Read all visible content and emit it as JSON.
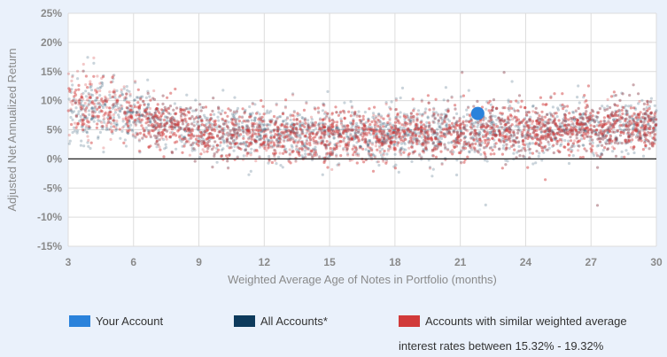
{
  "chart_data": {
    "type": "scatter",
    "xlabel": "Weighted Average Age of Notes in Portfolio (months)",
    "ylabel": "Adjusted Net Annualized Return",
    "xlim": [
      3,
      30
    ],
    "ylim": [
      -15,
      25
    ],
    "x_ticks": [
      "3",
      "6",
      "9",
      "12",
      "15",
      "18",
      "21",
      "24",
      "27",
      "30"
    ],
    "y_ticks": [
      "25%",
      "20%",
      "15%",
      "10%",
      "5%",
      "0%",
      "-5%",
      "-10%",
      "-15%"
    ],
    "grid": true,
    "legend_placement": "bottom",
    "series": [
      {
        "name": "Your Account",
        "color": "#2a82db",
        "points": [
          {
            "x": 21.8,
            "y": 7.8
          }
        ]
      },
      {
        "name": "All Accounts*",
        "color": "#0d3a5c",
        "note": "dense cloud of points; approximate trend (x, y%)",
        "trend": [
          [
            3,
            8.5
          ],
          [
            5,
            8
          ],
          [
            7,
            6.5
          ],
          [
            9,
            5
          ],
          [
            12,
            4.2
          ],
          [
            15,
            4.2
          ],
          [
            18,
            4.3
          ],
          [
            21,
            4.6
          ],
          [
            24,
            5
          ],
          [
            27,
            5.3
          ],
          [
            30,
            5.5
          ]
        ]
      },
      {
        "name": "Accounts with similar weighted average",
        "name_line2": "interest rates between 15.32% - 19.32%",
        "color": "#d13a3a",
        "note": "dense cloud of points; approximate trend (x, y%)",
        "trend": [
          [
            3,
            10
          ],
          [
            5,
            8.5
          ],
          [
            7,
            6.5
          ],
          [
            9,
            5
          ],
          [
            12,
            4
          ],
          [
            15,
            4
          ],
          [
            18,
            4
          ],
          [
            21,
            4.5
          ],
          [
            24,
            5
          ],
          [
            27,
            5.3
          ],
          [
            30,
            5.5
          ]
        ]
      }
    ]
  }
}
